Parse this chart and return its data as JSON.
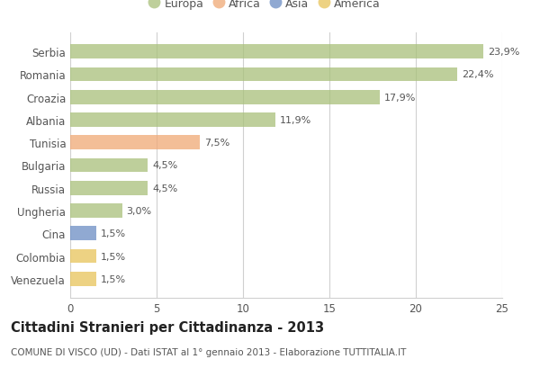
{
  "countries": [
    "Serbia",
    "Romania",
    "Croazia",
    "Albania",
    "Tunisia",
    "Bulgaria",
    "Russia",
    "Ungheria",
    "Cina",
    "Colombia",
    "Venezuela"
  ],
  "values": [
    23.9,
    22.4,
    17.9,
    11.9,
    7.5,
    4.5,
    4.5,
    3.0,
    1.5,
    1.5,
    1.5
  ],
  "labels": [
    "23,9%",
    "22,4%",
    "17,9%",
    "11,9%",
    "7,5%",
    "4,5%",
    "4,5%",
    "3,0%",
    "1,5%",
    "1,5%",
    "1,5%"
  ],
  "bar_colors": [
    "#a8c07a",
    "#a8c07a",
    "#a8c07a",
    "#a8c07a",
    "#f0a875",
    "#a8c07a",
    "#a8c07a",
    "#a8c07a",
    "#6b8dc4",
    "#e8c45a",
    "#e8c45a"
  ],
  "legend_labels": [
    "Europa",
    "Africa",
    "Asia",
    "America"
  ],
  "legend_colors": [
    "#a8c07a",
    "#f0a875",
    "#6b8dc4",
    "#e8c45a"
  ],
  "title": "Cittadini Stranieri per Cittadinanza - 2013",
  "subtitle": "COMUNE DI VISCO (UD) - Dati ISTAT al 1° gennaio 2013 - Elaborazione TUTTITALIA.IT",
  "xlim": [
    0,
    25
  ],
  "xticks": [
    0,
    5,
    10,
    15,
    20,
    25
  ],
  "background_color": "#ffffff",
  "grid_color": "#d0d0d0",
  "bar_alpha": 0.75,
  "title_fontsize": 10.5,
  "subtitle_fontsize": 7.5,
  "label_fontsize": 8,
  "tick_fontsize": 8.5,
  "legend_fontsize": 9
}
